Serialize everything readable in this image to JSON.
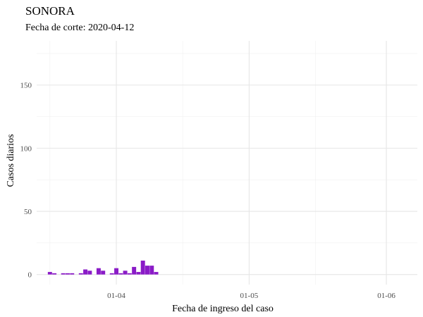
{
  "chart_data": {
    "type": "bar",
    "title": "SONORA",
    "subtitle": "Fecha de corte: 2020-04-12",
    "xlabel": "Fecha de ingreso del caso",
    "ylabel": "Casos diarios",
    "x_axis": {
      "type": "date",
      "range": [
        "2020-03-14",
        "2020-06-08"
      ],
      "ticks": [
        {
          "date": "2020-04-01",
          "label": "01-04"
        },
        {
          "date": "2020-05-01",
          "label": "01-05"
        },
        {
          "date": "2020-06-01",
          "label": "01-06"
        }
      ],
      "minor_ticks": [
        "2020-03-17",
        "2020-04-16",
        "2020-05-16"
      ]
    },
    "y_axis": {
      "range": [
        -8,
        185
      ],
      "ticks": [
        0,
        50,
        100,
        150
      ],
      "minor_ticks": [
        25,
        75,
        125,
        175
      ]
    },
    "grid": true,
    "legend": "none",
    "bar_color": "#8a1bc7",
    "bars": [
      {
        "date": "2020-03-17",
        "value": 2
      },
      {
        "date": "2020-03-18",
        "value": 1
      },
      {
        "date": "2020-03-20",
        "value": 1
      },
      {
        "date": "2020-03-21",
        "value": 1
      },
      {
        "date": "2020-03-22",
        "value": 1
      },
      {
        "date": "2020-03-24",
        "value": 1
      },
      {
        "date": "2020-03-25",
        "value": 4
      },
      {
        "date": "2020-03-26",
        "value": 3
      },
      {
        "date": "2020-03-28",
        "value": 5
      },
      {
        "date": "2020-03-29",
        "value": 3
      },
      {
        "date": "2020-03-31",
        "value": 1
      },
      {
        "date": "2020-04-01",
        "value": 5
      },
      {
        "date": "2020-04-02",
        "value": 1
      },
      {
        "date": "2020-04-03",
        "value": 3
      },
      {
        "date": "2020-04-04",
        "value": 1
      },
      {
        "date": "2020-04-05",
        "value": 6
      },
      {
        "date": "2020-04-06",
        "value": 2
      },
      {
        "date": "2020-04-07",
        "value": 11
      },
      {
        "date": "2020-04-08",
        "value": 7
      },
      {
        "date": "2020-04-09",
        "value": 7
      },
      {
        "date": "2020-04-10",
        "value": 2
      }
    ]
  }
}
